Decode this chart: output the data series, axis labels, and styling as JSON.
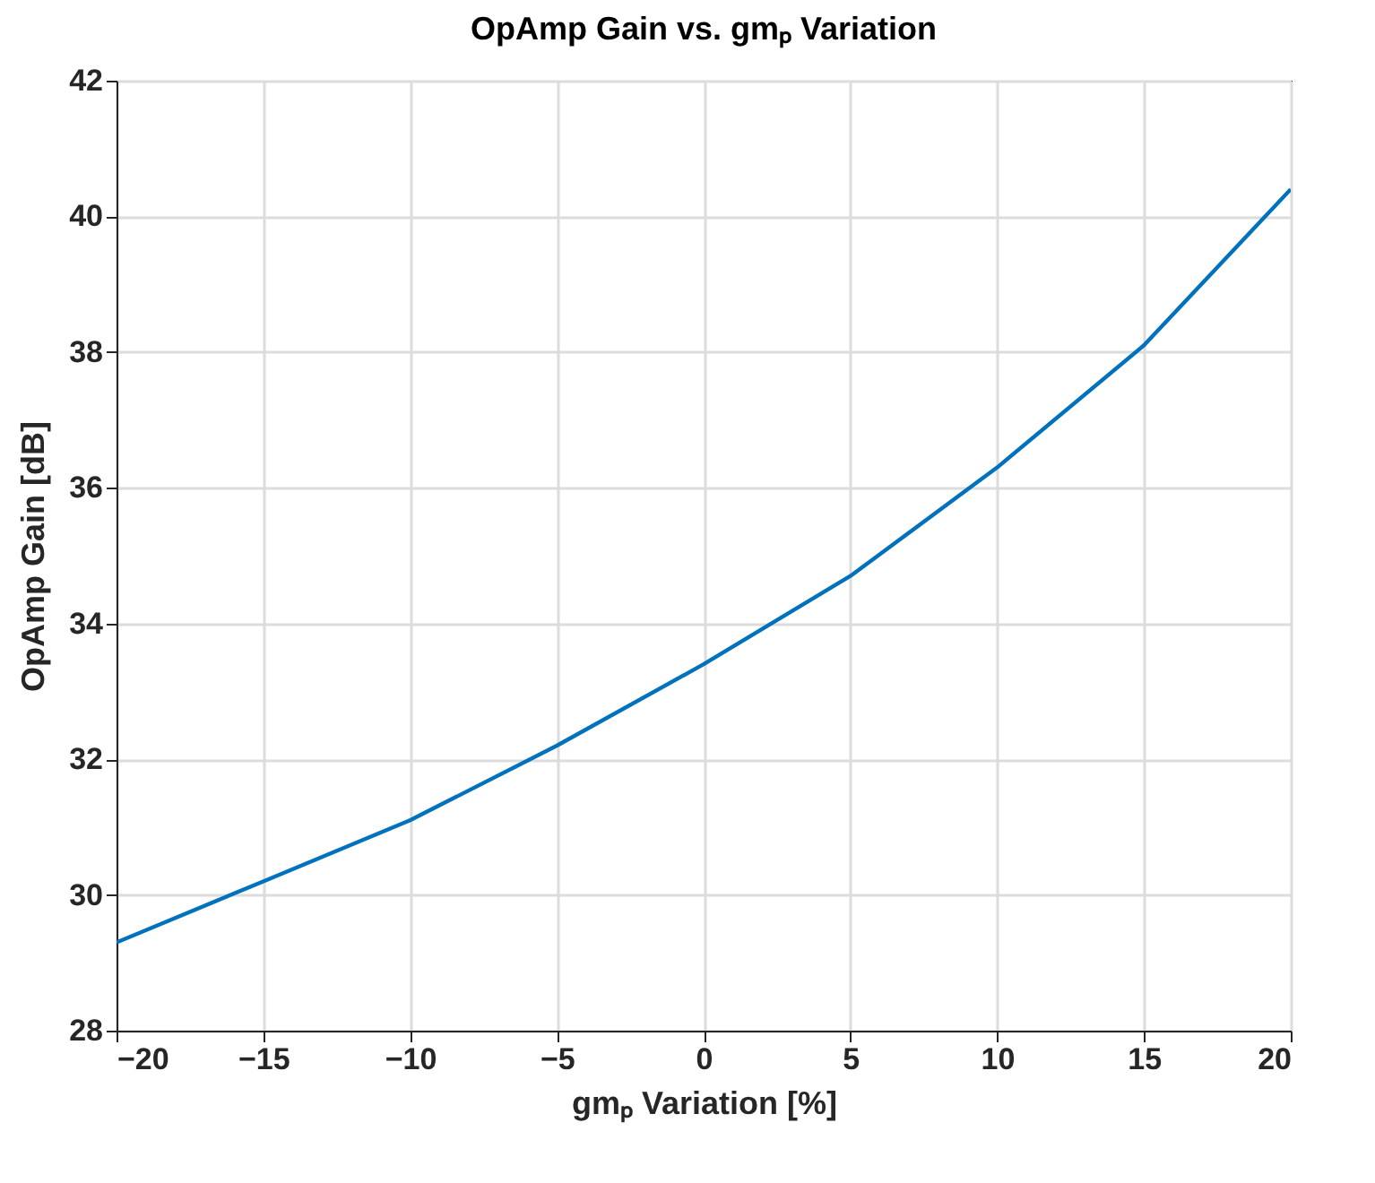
{
  "chart_data": {
    "type": "line",
    "title": "OpAmp Gain vs. gmₚ Variation",
    "xlabel": "gmₚ Variation [%]",
    "ylabel": "OpAmp Gain [dB]",
    "x": [
      -20,
      -15,
      -10,
      -5,
      0,
      5,
      10,
      15,
      20
    ],
    "series": [
      {
        "color": "#0072bd",
        "values": [
          29.3,
          30.2,
          31.1,
          32.2,
          33.4,
          34.7,
          36.3,
          38.1,
          40.4
        ]
      }
    ],
    "xlim": [
      -20,
      20
    ],
    "xticks": [
      -20,
      -15,
      -10,
      -5,
      0,
      5,
      10,
      15,
      20
    ],
    "ylim": [
      28,
      42
    ],
    "yticks": [
      28,
      30,
      32,
      34,
      36,
      38,
      40,
      42
    ],
    "grid": true,
    "marker": "none",
    "line_style": "solid"
  }
}
